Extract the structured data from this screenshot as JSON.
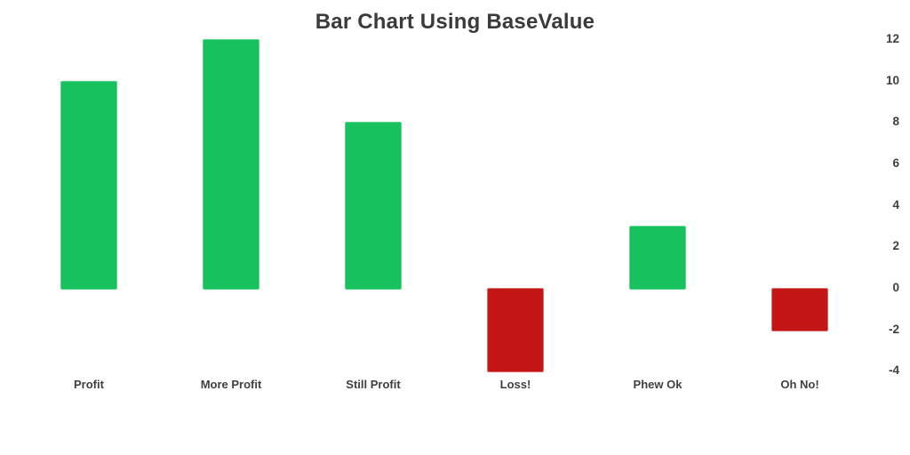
{
  "chart_data": {
    "type": "bar",
    "title": "Bar Chart Using BaseValue",
    "categories": [
      "Profit",
      "More Profit",
      "Still Profit",
      "Loss!",
      "Phew Ok",
      "Oh No!"
    ],
    "values": [
      10,
      12,
      8,
      -4,
      3,
      -2
    ],
    "base_value": 0,
    "yticks": [
      12,
      10,
      8,
      6,
      4,
      2,
      0,
      -2,
      -4
    ],
    "ylim": [
      -4.5,
      12.5
    ],
    "xlabel": "",
    "ylabel": "",
    "grid": false,
    "axis_side": "right",
    "legend": "none",
    "colors": {
      "positive_fill": "#16c15e",
      "positive_border": "#5bd78d",
      "negative_fill": "#c41516",
      "negative_border": "#da6f6f",
      "title_text": "#3a3a3a",
      "label_text": "#3f3f3f"
    }
  }
}
